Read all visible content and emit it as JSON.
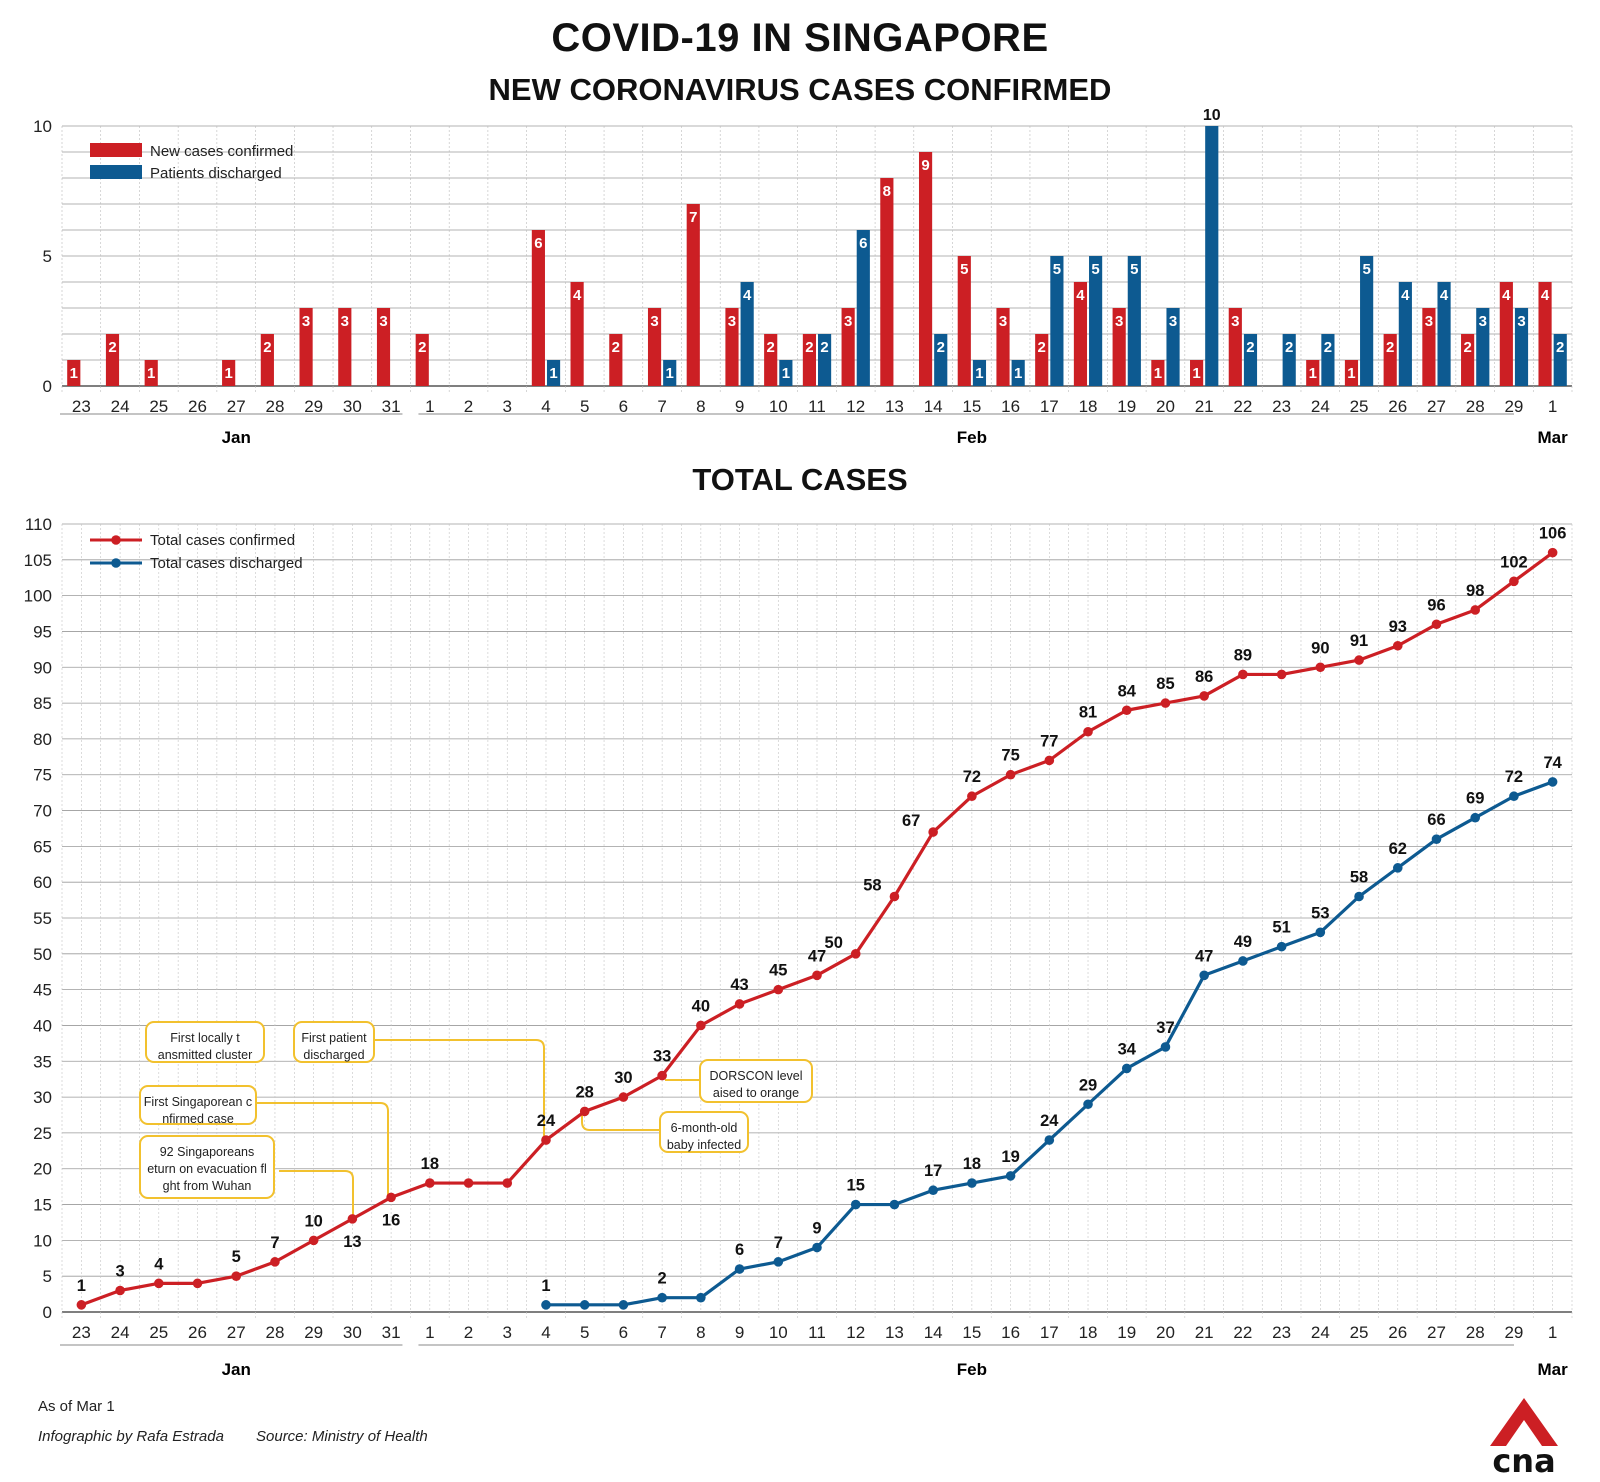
{
  "title": "COVID-19 IN SINGAPORE",
  "subtitle": "NEW CORONAVIRUS CASES CONFIRMED",
  "total_title": "TOTAL CASES",
  "footer": {
    "as_of": "As of Mar 1",
    "credit": "Infographic by Rafa Estrada",
    "source": "Source: Ministry of Health"
  },
  "logo_text": "cna",
  "colors": {
    "confirmed": "#cc1f24",
    "discharged": "#0d5a91",
    "annotation": "#f2c12e",
    "grid": "#999999"
  },
  "chart_data": [
    {
      "type": "bar",
      "title": "NEW CORONAVIRUS CASES CONFIRMED",
      "categories": [
        "23",
        "24",
        "25",
        "26",
        "27",
        "28",
        "29",
        "30",
        "31",
        "1",
        "2",
        "3",
        "4",
        "5",
        "6",
        "7",
        "8",
        "9",
        "10",
        "11",
        "12",
        "13",
        "14",
        "15",
        "16",
        "17",
        "18",
        "19",
        "20",
        "21",
        "22",
        "23",
        "24",
        "25",
        "26",
        "27",
        "28",
        "29",
        "1"
      ],
      "month_labels": [
        "Jan",
        "Feb",
        "Mar"
      ],
      "ylim": [
        0,
        10
      ],
      "yticks": [
        "0",
        "5",
        "10"
      ],
      "series": [
        {
          "name": "New cases confirmed",
          "values": [
            1,
            2,
            1,
            0,
            1,
            2,
            3,
            3,
            3,
            2,
            0,
            0,
            6,
            4,
            2,
            3,
            7,
            3,
            2,
            2,
            3,
            8,
            9,
            5,
            3,
            2,
            4,
            3,
            1,
            1,
            3,
            0,
            1,
            1,
            2,
            3,
            2,
            4,
            4
          ]
        },
        {
          "name": "Patients discharged",
          "values": [
            0,
            0,
            0,
            0,
            0,
            0,
            0,
            0,
            0,
            0,
            0,
            0,
            1,
            0,
            0,
            1,
            0,
            4,
            1,
            2,
            6,
            0,
            2,
            1,
            1,
            5,
            5,
            5,
            3,
            10,
            2,
            2,
            2,
            5,
            4,
            4,
            3,
            3,
            2
          ]
        }
      ]
    },
    {
      "type": "line",
      "title": "TOTAL CASES",
      "categories": [
        "23",
        "24",
        "25",
        "26",
        "27",
        "28",
        "29",
        "30",
        "31",
        "1",
        "2",
        "3",
        "4",
        "5",
        "6",
        "7",
        "8",
        "9",
        "10",
        "11",
        "12",
        "13",
        "14",
        "15",
        "16",
        "17",
        "18",
        "19",
        "20",
        "21",
        "22",
        "23",
        "24",
        "25",
        "26",
        "27",
        "28",
        "29",
        "1"
      ],
      "month_labels": [
        "Jan",
        "Feb",
        "Mar"
      ],
      "ylim": [
        0,
        110
      ],
      "yticks": [
        "0",
        "5",
        "10",
        "15",
        "20",
        "25",
        "30",
        "35",
        "40",
        "45",
        "50",
        "55",
        "60",
        "65",
        "70",
        "75",
        "80",
        "85",
        "90",
        "95",
        "100",
        "105",
        "110"
      ],
      "series": [
        {
          "name": "Total cases confirmed",
          "values": [
            1,
            3,
            4,
            4,
            5,
            7,
            10,
            13,
            16,
            18,
            18,
            18,
            24,
            28,
            30,
            33,
            40,
            43,
            45,
            47,
            50,
            58,
            67,
            72,
            75,
            77,
            81,
            84,
            85,
            86,
            89,
            89,
            90,
            91,
            93,
            96,
            98,
            102,
            106
          ],
          "labeled": [
            "1",
            "3",
            "4",
            "",
            "5",
            "7",
            "10",
            "13",
            "16",
            "18",
            "",
            "",
            "24",
            "28",
            "30",
            "33",
            "40",
            "43",
            "45",
            "47",
            "50",
            "58",
            "67",
            "72",
            "75",
            "77",
            "81",
            "84",
            "85",
            "86",
            "89",
            "",
            "90",
            "91",
            "93",
            "96",
            "98",
            "102",
            "106"
          ]
        },
        {
          "name": "Total cases discharged",
          "values": [
            null,
            null,
            null,
            null,
            null,
            null,
            null,
            null,
            null,
            null,
            null,
            null,
            1,
            1,
            1,
            2,
            2,
            6,
            7,
            9,
            15,
            15,
            17,
            18,
            19,
            24,
            29,
            34,
            37,
            47,
            49,
            51,
            53,
            58,
            62,
            66,
            69,
            72,
            74
          ],
          "labeled": [
            "",
            "",
            "",
            "",
            "",
            "",
            "",
            "",
            "",
            "",
            "",
            "",
            "1",
            "",
            "",
            "2",
            "",
            "6",
            "7",
            "9",
            "15",
            "",
            "17",
            "18",
            "19",
            "24",
            "29",
            "34",
            "37",
            "47",
            "49",
            "51",
            "53",
            "58",
            "62",
            "66",
            "69",
            "72",
            "74"
          ]
        }
      ],
      "annotations": [
        "92 Singaporeans return on evacuation flight from Wuhan",
        "First Singaporean confirmed case",
        "First locally transmitted cluster",
        "First patient discharged",
        "DORSCON level raised to orange",
        "6-month-old baby infected"
      ]
    }
  ]
}
